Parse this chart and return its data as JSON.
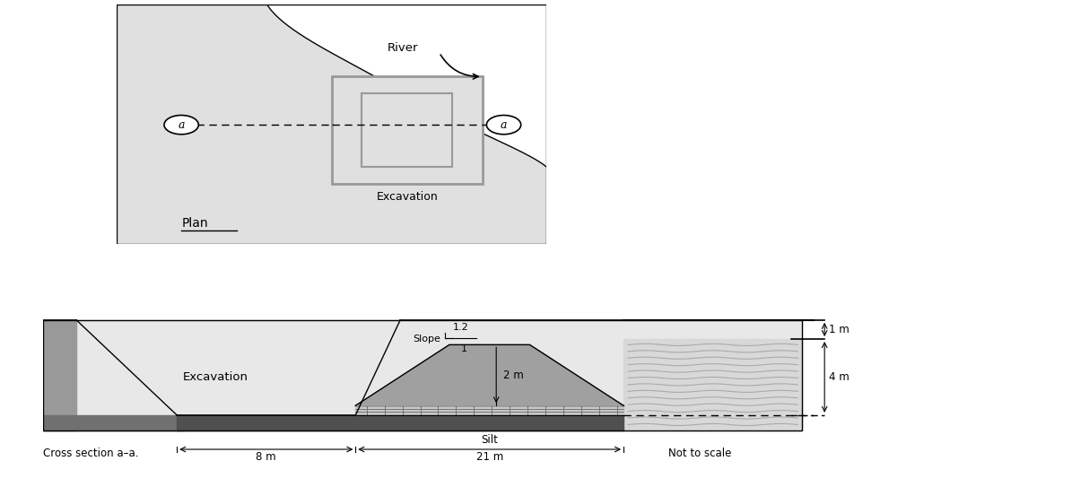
{
  "bg_color": "#ffffff",
  "plan_land_color": "#e0e0e0",
  "plan_border_color": "#000000",
  "exc_rect_color": "#999999",
  "exc_inner_color": "#bbbbbb",
  "section_light_gray": "#e8e8e8",
  "section_dark_gray": "#999999",
  "section_mid_gray": "#bbbbbb",
  "silt_mound_color": "#a0a0a0",
  "river_fill_color": "#d8d8d8",
  "river_wave_color": "#aaaaaa",
  "silt_hatch_color": "#888888",
  "bottom_dark": "#707070",
  "title_plan": "Plan",
  "title_section": "Cross section a–a.",
  "label_river": "River",
  "label_excavation_plan": "Excavation",
  "label_excavation_section": "Excavation",
  "label_silt": "Silt",
  "label_slope": "Slope",
  "label_slope_ratio": "1.2",
  "label_slope_1": "1",
  "label_2m": "2 m",
  "label_21m": "21 m",
  "label_8m": "8 m",
  "label_1m": "1 m",
  "label_4m": "4 m",
  "label_not_to_scale": "Not to scale"
}
